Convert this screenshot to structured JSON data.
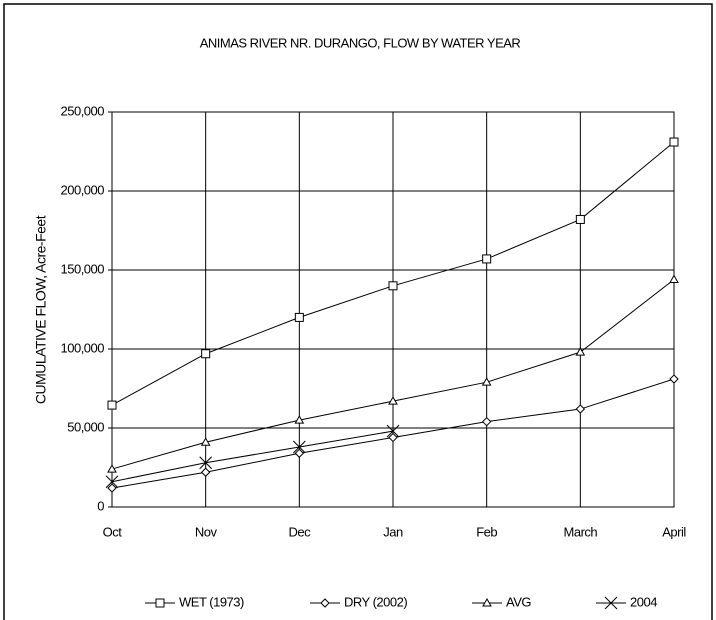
{
  "chart_data": {
    "type": "line",
    "title": "ANIMAS RIVER NR. DURANGO, FLOW BY WATER YEAR",
    "y_label": "CUMULATIVE FLOW, Acre-Feet",
    "categories": [
      "Oct",
      "Nov",
      "Dec",
      "Jan",
      "Feb",
      "March",
      "April"
    ],
    "series": [
      {
        "name": "WET (1973)",
        "color": "#000000",
        "marker": "square",
        "values": [
          64500,
          97000,
          120000,
          140000,
          157000,
          182000,
          231000
        ]
      },
      {
        "name": "DRY (2002)",
        "color": "#000000",
        "marker": "diamond",
        "values": [
          12000,
          22000,
          34000,
          44000,
          54000,
          62000,
          81000
        ]
      },
      {
        "name": "AVG",
        "color": "#000000",
        "marker": "triangle",
        "values": [
          24000,
          41000,
          55000,
          67000,
          79000,
          98000,
          144000
        ]
      },
      {
        "name": "2004",
        "color": "#000000",
        "marker": "x",
        "values": [
          16000,
          28000,
          38000,
          48000,
          null,
          null,
          null
        ]
      }
    ],
    "ylim": [
      0,
      250000
    ],
    "yticks": [
      0,
      {
        "value": 50000,
        "label": "50,000"
      },
      {
        "value": 100000,
        "label": "100,000"
      },
      {
        "value": 150000,
        "label": "150,000"
      },
      {
        "value": 200000,
        "label": "200,000"
      },
      {
        "value": 250000,
        "label": "250,000"
      }
    ],
    "grid": true,
    "legend": "bottom"
  }
}
